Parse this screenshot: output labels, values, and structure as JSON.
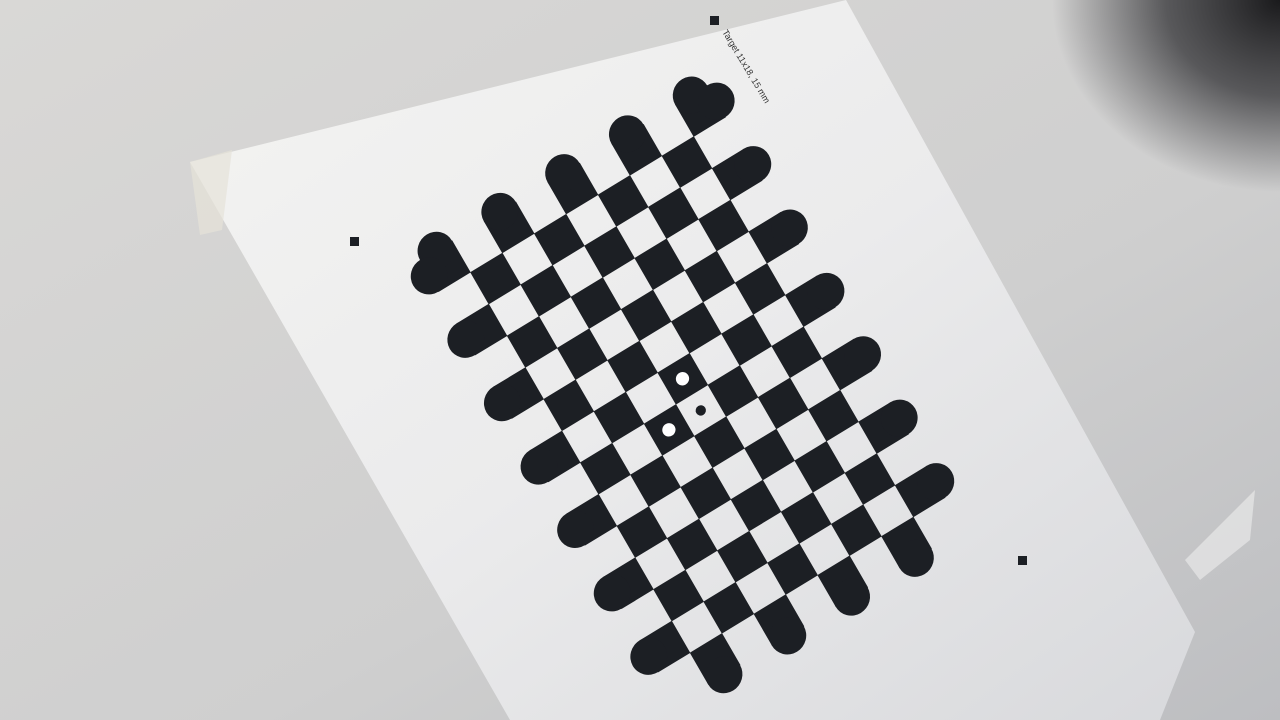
{
  "target_label": "Target 11x18, 15 mm"
}
